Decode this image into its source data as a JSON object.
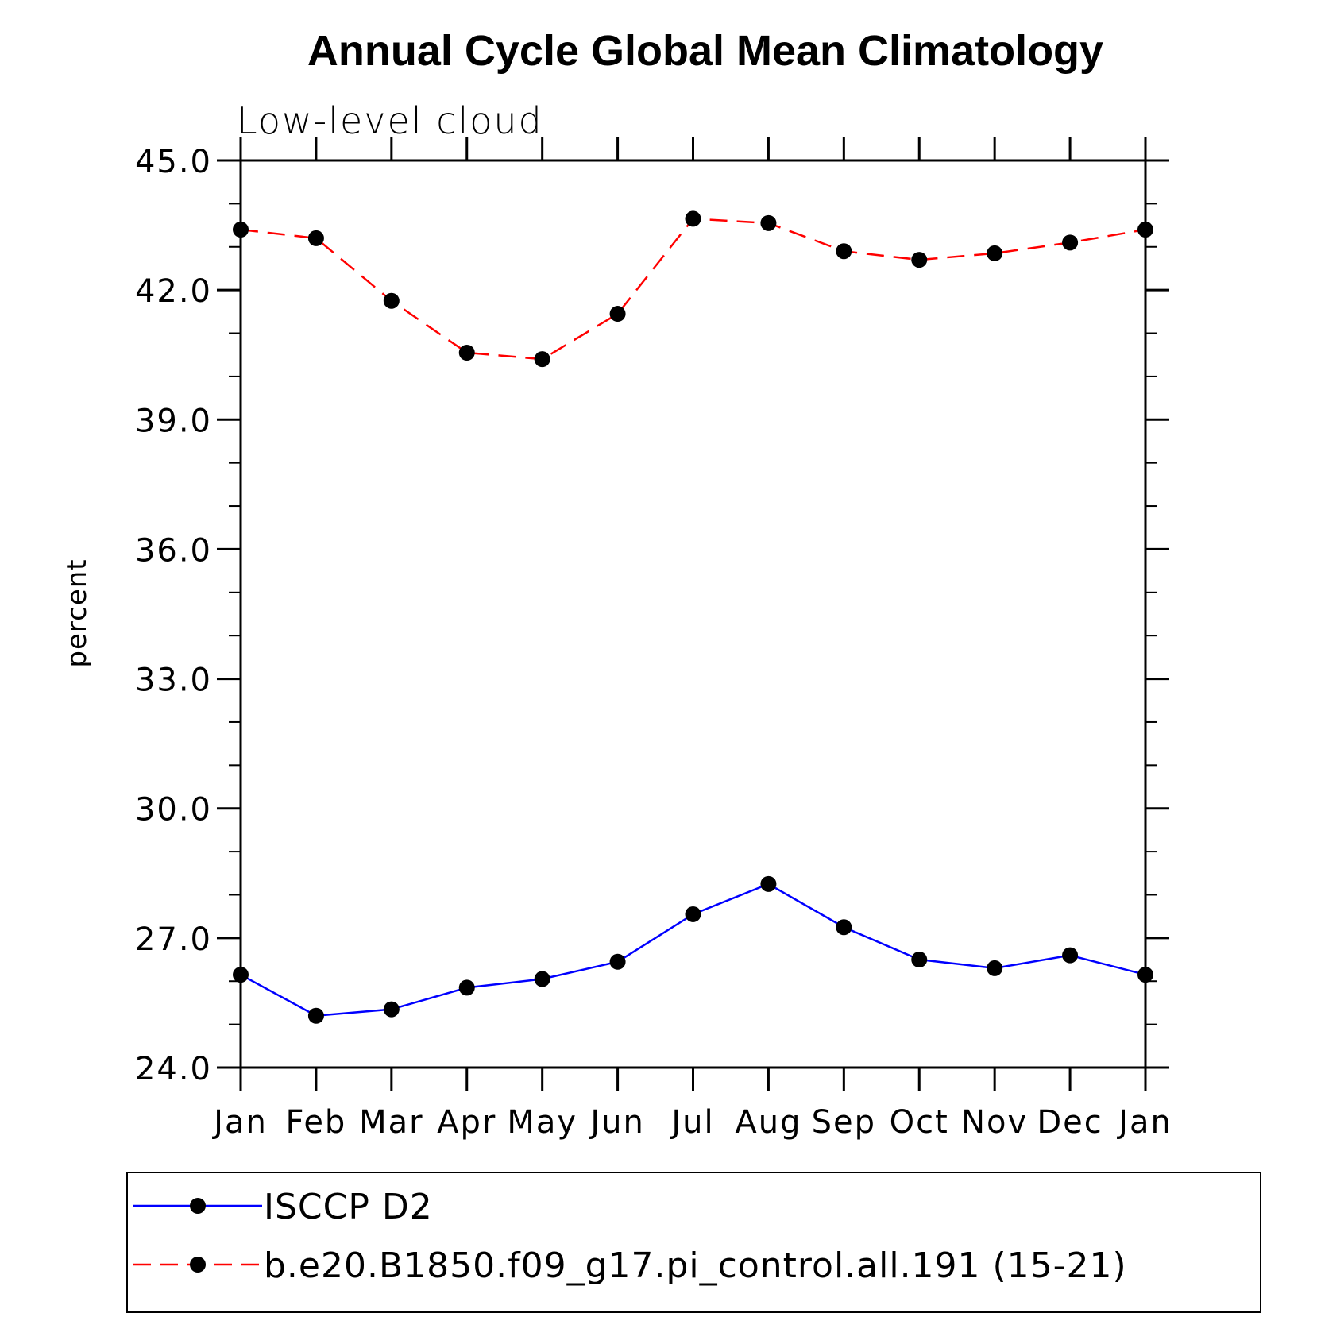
{
  "chart_data": {
    "type": "line",
    "title": "Annual Cycle Global Mean Climatology",
    "subtitle": "Low-level cloud",
    "xlabel": "",
    "ylabel": "percent",
    "categories": [
      "Jan",
      "Feb",
      "Mar",
      "Apr",
      "May",
      "Jun",
      "Jul",
      "Aug",
      "Sep",
      "Oct",
      "Nov",
      "Dec",
      "Jan"
    ],
    "ylim": [
      24.0,
      45.0
    ],
    "yticks": [
      "24.0",
      "27.0",
      "30.0",
      "33.0",
      "36.0",
      "39.0",
      "42.0",
      "45.0"
    ],
    "ytick_values": [
      24,
      27,
      30,
      33,
      36,
      39,
      42,
      45
    ],
    "series": [
      {
        "name": "ISCCP D2",
        "color": "#0000ff",
        "dash": "solid",
        "values": [
          26.15,
          25.2,
          25.35,
          25.85,
          26.05,
          26.45,
          27.55,
          28.25,
          27.25,
          26.5,
          26.3,
          26.6,
          26.15
        ]
      },
      {
        "name": "b.e20.B1850.f09_g17.pi_control.all.191 (15-21)",
        "color": "#ff0000",
        "dash": "dashed",
        "values": [
          43.4,
          43.2,
          41.75,
          40.55,
          40.4,
          41.45,
          43.65,
          43.55,
          42.9,
          42.7,
          42.85,
          43.1,
          43.4
        ]
      }
    ],
    "legend_position": "bottom"
  }
}
